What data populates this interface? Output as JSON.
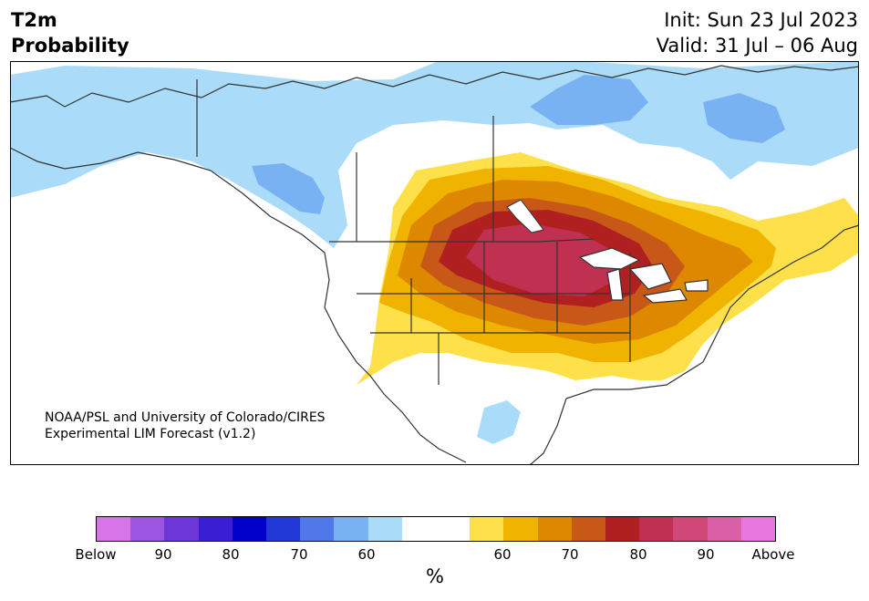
{
  "header": {
    "title_line1": "T2m",
    "title_line2": "Probability",
    "init": "Init: Sun 23 Jul 2023",
    "valid": "Valid: 31 Jul – 06 Aug"
  },
  "map": {
    "credit_line1": "NOAA/PSL and University of Colorado/CIRES",
    "credit_line2": "Experimental LIM Forecast (v1.2)"
  },
  "colorbar": {
    "colors": [
      "#d674e8",
      "#9b55e0",
      "#6c36d8",
      "#3a1ed4",
      "#0000c8",
      "#2238d6",
      "#5178e8",
      "#78b2f2",
      "#aadcfa",
      "#ffffff",
      "#ffffff",
      "#fde04a",
      "#f0b400",
      "#dd8800",
      "#c85818",
      "#b02020",
      "#c03050",
      "#d04878",
      "#dc60a8",
      "#e878e0"
    ],
    "labels": [
      "Below",
      "90",
      "80",
      "70",
      "60",
      "60",
      "70",
      "80",
      "90",
      "Above"
    ],
    "unit": "%"
  }
}
